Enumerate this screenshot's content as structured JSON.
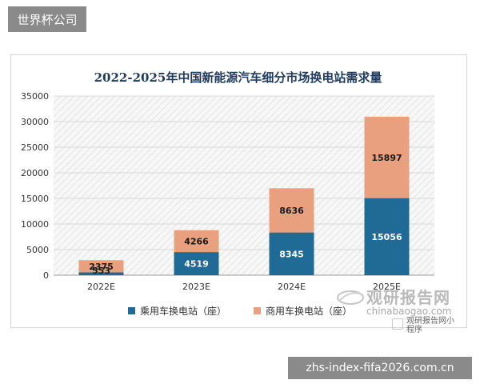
{
  "header": {
    "site_name": "世界杯公司"
  },
  "chart_data": {
    "type": "bar",
    "stacked": true,
    "title": "2022-2025年中国新能源汽车细分市场换电站需求量",
    "categories": [
      "2022E",
      "2023E",
      "2024E",
      "2025E"
    ],
    "series": [
      {
        "name": "乘用车换电站（座）",
        "values": [
          553,
          4519,
          8345,
          15056
        ],
        "color": "#1f6b95"
      },
      {
        "name": "商用车换电站（座）",
        "values": [
          2375,
          4266,
          8636,
          15897
        ],
        "color": "#e9a07f"
      }
    ],
    "ylim": [
      0,
      35000
    ],
    "yticks": [
      0,
      5000,
      10000,
      15000,
      20000,
      25000,
      30000,
      35000
    ],
    "grid": true,
    "legend_position": "bottom"
  },
  "watermark": {
    "brand_cn": "观研报告网",
    "brand_url": "chinabaogao.com",
    "side_text_1": "观研报告网小",
    "side_text_2": "程序"
  },
  "footer": {
    "domain_text": "zhs-index-fifa2026.com.cn"
  }
}
